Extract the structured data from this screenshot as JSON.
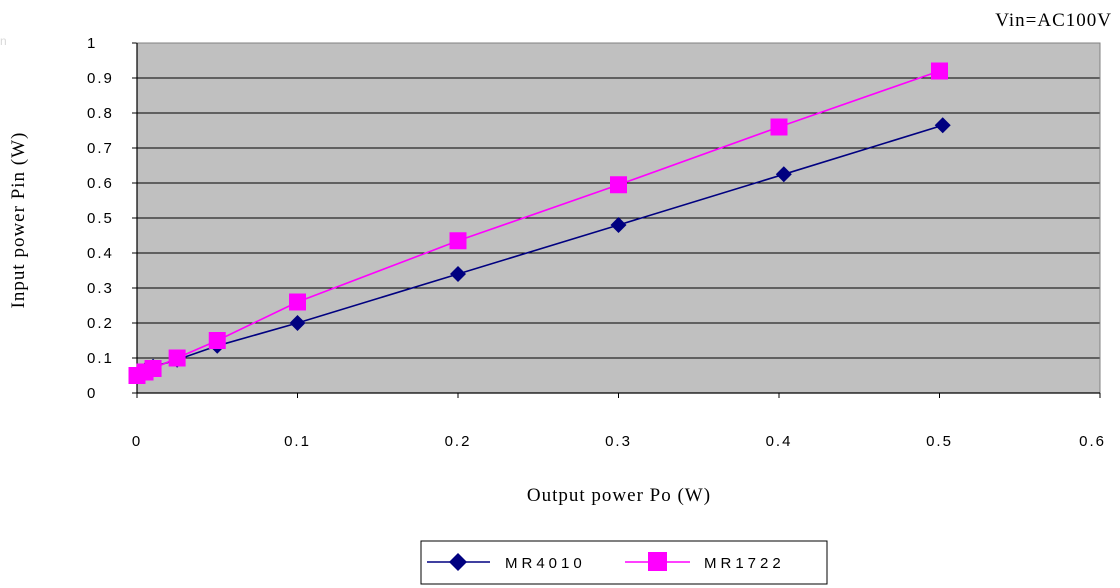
{
  "chart_data": {
    "type": "line",
    "condition_note": "Vin=AC100V",
    "xlabel": "Output power Po (W)",
    "ylabel": "Input power Pin (W)",
    "xlim": [
      0,
      0.6
    ],
    "ylim": [
      0,
      1
    ],
    "x_ticks": [
      "0",
      "0.1",
      "0.2",
      "0.3",
      "0.4",
      "0.5",
      "0.6"
    ],
    "y_ticks": [
      "0",
      "0.1",
      "0.2",
      "0.3",
      "0.4",
      "0.5",
      "0.6",
      "0.7",
      "0.8",
      "0.9",
      "1"
    ],
    "grid": true,
    "legend_position": "bottom",
    "series": [
      {
        "name": "MR4010",
        "color": "#000080",
        "marker": "diamond",
        "x": [
          0,
          0.005,
          0.01,
          0.025,
          0.05,
          0.1,
          0.2,
          0.3,
          0.403,
          0.502
        ],
        "y": [
          0.05,
          0.065,
          0.075,
          0.095,
          0.135,
          0.2,
          0.34,
          0.48,
          0.625,
          0.765
        ]
      },
      {
        "name": "MR1722",
        "color": "#ff00ff",
        "marker": "square",
        "x": [
          0,
          0.005,
          0.01,
          0.025,
          0.05,
          0.1,
          0.2,
          0.3,
          0.4,
          0.5
        ],
        "y": [
          0.05,
          0.06,
          0.07,
          0.1,
          0.15,
          0.26,
          0.435,
          0.595,
          0.76,
          0.92
        ]
      }
    ]
  },
  "corner_text": "n"
}
